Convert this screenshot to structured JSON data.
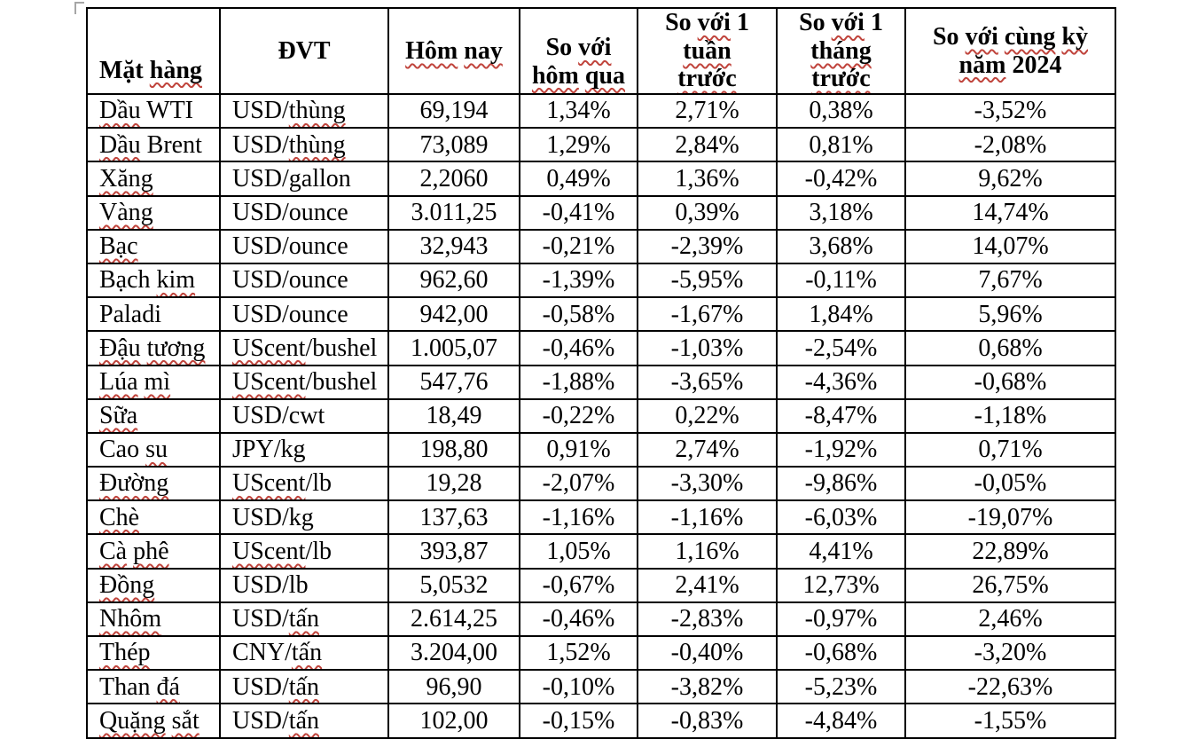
{
  "squiggle_color": "#c0443c",
  "table": {
    "headers": [
      {
        "label": "Mặt hàng",
        "segments": [
          [
            "Mặt ",
            false
          ],
          [
            "hàng",
            true
          ]
        ]
      },
      {
        "label": "ĐVT",
        "segments": [
          [
            "ĐVT",
            false
          ]
        ]
      },
      {
        "label": "Hôm nay",
        "segments": [
          [
            "Hôm",
            true
          ],
          [
            " ",
            false
          ],
          [
            "nay",
            true
          ]
        ]
      },
      {
        "label": "So với hôm qua",
        "segments": [
          [
            "So ",
            false
          ],
          [
            "với",
            true
          ],
          [
            "\n",
            false
          ],
          [
            "hôm",
            true
          ],
          [
            " ",
            false
          ],
          [
            "qua",
            true
          ]
        ]
      },
      {
        "label": "So với 1 tuần trước",
        "segments": [
          [
            "So ",
            false
          ],
          [
            "với",
            true
          ],
          [
            " 1",
            false
          ],
          [
            "\n",
            false
          ],
          [
            "tuần",
            true
          ],
          [
            "\n",
            false
          ],
          [
            "trước",
            true
          ]
        ]
      },
      {
        "label": "So với 1 tháng trước",
        "segments": [
          [
            "So ",
            false
          ],
          [
            "với",
            true
          ],
          [
            " 1",
            false
          ],
          [
            "\n",
            false
          ],
          [
            "tháng",
            true
          ],
          [
            "\n",
            false
          ],
          [
            "trước",
            true
          ]
        ]
      },
      {
        "label": "So với cùng kỳ năm 2024",
        "segments": [
          [
            "So ",
            false
          ],
          [
            "với",
            true
          ],
          [
            " ",
            false
          ],
          [
            "cùng",
            true
          ],
          [
            " ",
            false
          ],
          [
            "kỳ",
            true
          ],
          [
            "\n",
            false
          ],
          [
            "năm",
            true
          ],
          [
            " 2024",
            false
          ]
        ]
      }
    ],
    "rows": [
      {
        "name": [
          [
            "Dầu",
            true
          ],
          [
            " WTI",
            false
          ]
        ],
        "unit": [
          [
            "USD/",
            false
          ],
          [
            "thùng",
            true
          ]
        ],
        "today": "69,194",
        "vs_yesterday": "1,34%",
        "vs_week": "2,71%",
        "vs_month": "0,38%",
        "vs_year": "-3,52%"
      },
      {
        "name": [
          [
            "Dầu",
            true
          ],
          [
            " Brent",
            false
          ]
        ],
        "unit": [
          [
            "USD/",
            false
          ],
          [
            "thùng",
            true
          ]
        ],
        "today": "73,089",
        "vs_yesterday": "1,29%",
        "vs_week": "2,84%",
        "vs_month": "0,81%",
        "vs_year": "-2,08%"
      },
      {
        "name": [
          [
            "Xăng",
            true
          ]
        ],
        "unit": [
          [
            "USD/gallon",
            false
          ]
        ],
        "today": "2,2060",
        "vs_yesterday": "0,49%",
        "vs_week": "1,36%",
        "vs_month": "-0,42%",
        "vs_year": "9,62%"
      },
      {
        "name": [
          [
            "Vàng",
            true
          ]
        ],
        "unit": [
          [
            "USD/ounce",
            false
          ]
        ],
        "today": "3.011,25",
        "vs_yesterday": "-0,41%",
        "vs_week": "0,39%",
        "vs_month": "3,18%",
        "vs_year": "14,74%"
      },
      {
        "name": [
          [
            "Bạc",
            true
          ]
        ],
        "unit": [
          [
            "USD/ounce",
            false
          ]
        ],
        "today": "32,943",
        "vs_yesterday": "-0,21%",
        "vs_week": "-2,39%",
        "vs_month": "3,68%",
        "vs_year": "14,07%"
      },
      {
        "name": [
          [
            "Bạch ",
            false
          ],
          [
            "kim",
            true
          ]
        ],
        "unit": [
          [
            "USD/ounce",
            false
          ]
        ],
        "today": "962,60",
        "vs_yesterday": "-1,39%",
        "vs_week": "-5,95%",
        "vs_month": "-0,11%",
        "vs_year": "7,67%"
      },
      {
        "name": [
          [
            "Paladi",
            false
          ]
        ],
        "unit": [
          [
            "USD/ounce",
            false
          ]
        ],
        "today": "942,00",
        "vs_yesterday": "-0,58%",
        "vs_week": "-1,67%",
        "vs_month": "1,84%",
        "vs_year": "5,96%"
      },
      {
        "name": [
          [
            "Đậu",
            true
          ],
          [
            " ",
            false
          ],
          [
            "tương",
            true
          ]
        ],
        "unit": [
          [
            "UScent",
            true
          ],
          [
            "/bushel",
            false
          ]
        ],
        "today": "1.005,07",
        "vs_yesterday": "-0,46%",
        "vs_week": "-1,03%",
        "vs_month": "-2,54%",
        "vs_year": "0,68%"
      },
      {
        "name": [
          [
            "Lúa",
            true
          ],
          [
            " ",
            false
          ],
          [
            "mì",
            true
          ]
        ],
        "unit": [
          [
            "UScent",
            true
          ],
          [
            "/bushel",
            false
          ]
        ],
        "today": "547,76",
        "vs_yesterday": "-1,88%",
        "vs_week": "-3,65%",
        "vs_month": "-4,36%",
        "vs_year": "-0,68%"
      },
      {
        "name": [
          [
            "Sữa",
            true
          ]
        ],
        "unit": [
          [
            "USD/cwt",
            false
          ]
        ],
        "today": "18,49",
        "vs_yesterday": "-0,22%",
        "vs_week": "0,22%",
        "vs_month": "-8,47%",
        "vs_year": "-1,18%"
      },
      {
        "name": [
          [
            "Cao ",
            false
          ],
          [
            "su",
            true
          ]
        ],
        "unit": [
          [
            "JPY/kg",
            false
          ]
        ],
        "today": "198,80",
        "vs_yesterday": "0,91%",
        "vs_week": "2,74%",
        "vs_month": "-1,92%",
        "vs_year": "0,71%"
      },
      {
        "name": [
          [
            "Đường",
            true
          ]
        ],
        "unit": [
          [
            "UScent",
            true
          ],
          [
            "/lb",
            false
          ]
        ],
        "today": "19,28",
        "vs_yesterday": "-2,07%",
        "vs_week": "-3,30%",
        "vs_month": "-9,86%",
        "vs_year": "-0,05%"
      },
      {
        "name": [
          [
            "Chè",
            true
          ]
        ],
        "unit": [
          [
            "USD/kg",
            false
          ]
        ],
        "today": "137,63",
        "vs_yesterday": "-1,16%",
        "vs_week": "-1,16%",
        "vs_month": "-6,03%",
        "vs_year": "-19,07%"
      },
      {
        "name": [
          [
            "Cà",
            true
          ],
          [
            " ",
            false
          ],
          [
            "phê",
            true
          ]
        ],
        "unit": [
          [
            "UScent",
            true
          ],
          [
            "/lb",
            false
          ]
        ],
        "today": "393,87",
        "vs_yesterday": "1,05%",
        "vs_week": "1,16%",
        "vs_month": "4,41%",
        "vs_year": "22,89%"
      },
      {
        "name": [
          [
            "Đồng",
            true
          ]
        ],
        "unit": [
          [
            "USD/lb",
            false
          ]
        ],
        "today": "5,0532",
        "vs_yesterday": "-0,67%",
        "vs_week": "2,41%",
        "vs_month": "12,73%",
        "vs_year": "26,75%"
      },
      {
        "name": [
          [
            "Nhôm",
            true
          ]
        ],
        "unit": [
          [
            "USD/",
            false
          ],
          [
            "tấn",
            true
          ]
        ],
        "today": "2.614,25",
        "vs_yesterday": "-0,46%",
        "vs_week": "-2,83%",
        "vs_month": "-0,97%",
        "vs_year": "2,46%"
      },
      {
        "name": [
          [
            "Thép",
            true
          ]
        ],
        "unit": [
          [
            "CNY/",
            false
          ],
          [
            "tấn",
            true
          ]
        ],
        "today": "3.204,00",
        "vs_yesterday": "1,52%",
        "vs_week": "-0,40%",
        "vs_month": "-0,68%",
        "vs_year": "-3,20%"
      },
      {
        "name": [
          [
            "Than ",
            false
          ],
          [
            "đá",
            true
          ]
        ],
        "unit": [
          [
            "USD/",
            false
          ],
          [
            "tấn",
            true
          ]
        ],
        "today": "96,90",
        "vs_yesterday": "-0,10%",
        "vs_week": "-3,82%",
        "vs_month": "-5,23%",
        "vs_year": "-22,63%"
      },
      {
        "name": [
          [
            "Quặng",
            true
          ],
          [
            " ",
            false
          ],
          [
            "sắt",
            true
          ]
        ],
        "unit": [
          [
            "USD/",
            false
          ],
          [
            "tấn",
            true
          ]
        ],
        "today": "102,00",
        "vs_yesterday": "-0,15%",
        "vs_week": "-0,83%",
        "vs_month": "-4,84%",
        "vs_year": "-1,55%"
      }
    ]
  }
}
